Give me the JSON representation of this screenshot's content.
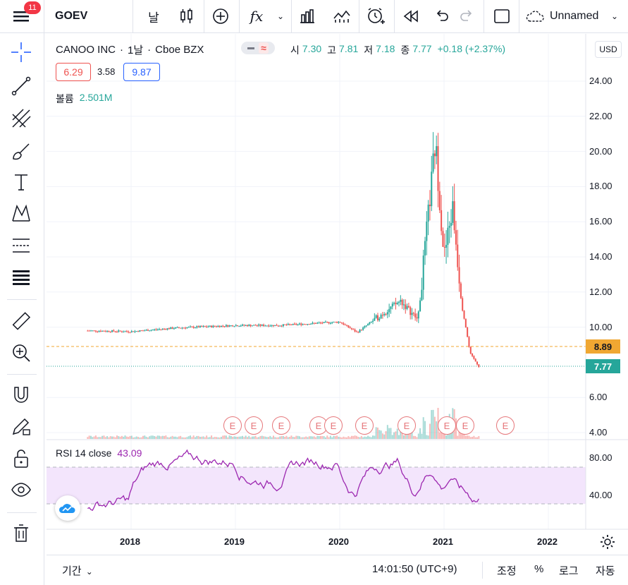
{
  "topbar": {
    "badge": "11",
    "symbol": "GOEV",
    "interval": "날",
    "fx": "fx",
    "layout_name": "Unnamed"
  },
  "legend": {
    "name": "CANOO INC",
    "sep1": "·",
    "interval": "1날",
    "sep2": "·",
    "exchange": "Cboe BZX",
    "o_label": "시",
    "o_val": "7.30",
    "h_label": "고",
    "h_val": "7.81",
    "l_label": "저",
    "l_val": "7.18",
    "c_label": "종",
    "c_val": "7.77",
    "change": "+0.18 (+2.37%)",
    "box1": "6.29",
    "mid": "3.58",
    "box2": "9.87",
    "volume_label": "볼륨",
    "volume_val": "2.501M"
  },
  "currency": "USD",
  "price_axis": [
    "24.00",
    "22.00",
    "20.00",
    "18.00",
    "16.00",
    "14.00",
    "12.00",
    "10.00",
    "6.00",
    "4.00"
  ],
  "price_tags": {
    "orange": "8.89",
    "teal": "7.77"
  },
  "rsi": {
    "label": "RSI 14 close",
    "value": "43.09",
    "axis": [
      "80.00",
      "40.00"
    ]
  },
  "time_axis": [
    "2018",
    "2019",
    "2020",
    "2021",
    "2022"
  ],
  "earnings_mark": "E",
  "bottom": {
    "range": "기간",
    "time": "14:01:50 (UTC+9)",
    "adjust": "조정",
    "percent": "%",
    "log": "로그",
    "auto": "자동"
  },
  "colors": {
    "up": "#26a69a",
    "down": "#ef5350",
    "rsi_line": "#9c27b0",
    "rsi_band": "#f3e5fc",
    "orange_line": "#f0a732",
    "accent_blue": "#2962ff"
  },
  "chart_data": {
    "type": "candlestick",
    "y_range": [
      3.6,
      25.0
    ],
    "series": [
      {
        "x": "2017-08",
        "close": 9.8
      },
      {
        "x": "2018-01",
        "close": 9.75
      },
      {
        "x": "2018-06",
        "close": 9.95
      },
      {
        "x": "2019-01",
        "close": 10.1
      },
      {
        "x": "2019-06",
        "close": 10.1
      },
      {
        "x": "2020-01",
        "close": 10.3
      },
      {
        "x": "2020-03",
        "close": 9.7
      },
      {
        "x": "2020-06",
        "close": 10.8
      },
      {
        "x": "2020-08",
        "close": 11.5
      },
      {
        "x": "2020-10",
        "close": 10.4
      },
      {
        "x": "2020-12",
        "close": 20.5
      },
      {
        "x": "2021-01",
        "close": 14.0
      },
      {
        "x": "2021-02",
        "close": 16.8
      },
      {
        "x": "2021-03",
        "close": 11.5
      },
      {
        "x": "2021-04",
        "close": 8.5
      },
      {
        "x": "2021-05",
        "close": 7.77
      }
    ],
    "rsi_range": [
      20,
      90
    ]
  }
}
